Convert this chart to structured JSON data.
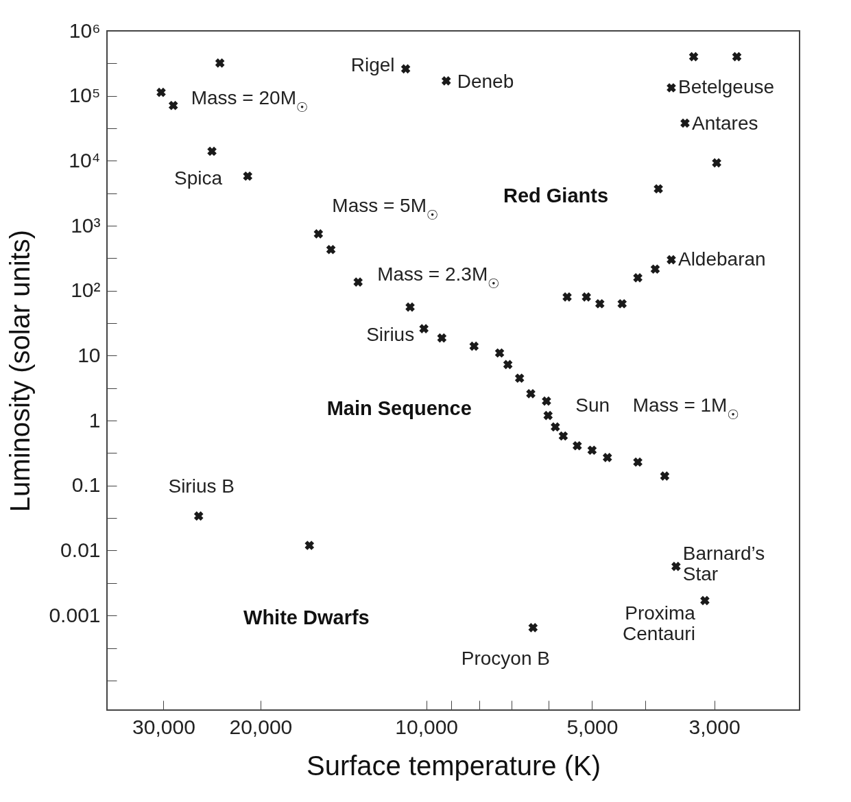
{
  "chart_data": {
    "type": "scatter",
    "xlabel": "Surface temperature (K)",
    "ylabel": "Luminosity (solar units)",
    "log": "xy",
    "grid": false,
    "marker": "cross",
    "xlim": [
      38000,
      2100
    ],
    "ylim": [
      3.5e-05,
      1000000
    ],
    "xticks": [
      {
        "value": 30000,
        "label": "30,000"
      },
      {
        "value": 20000,
        "label": "20,000"
      },
      {
        "value": 10000,
        "label": "10,000"
      },
      {
        "value": 9000,
        "label": null
      },
      {
        "value": 8000,
        "label": null
      },
      {
        "value": 7000,
        "label": null
      },
      {
        "value": 6000,
        "label": null
      },
      {
        "value": 5000,
        "label": "5,000"
      },
      {
        "value": 4000,
        "label": null
      },
      {
        "value": 3000,
        "label": "3,000"
      }
    ],
    "yticks": [
      {
        "value": 1000000,
        "label": "10⁶"
      },
      {
        "value": 316228,
        "label": null
      },
      {
        "value": 100000,
        "label": "10⁵"
      },
      {
        "value": 31623,
        "label": null
      },
      {
        "value": 10000,
        "label": "10⁴"
      },
      {
        "value": 3162,
        "label": null
      },
      {
        "value": 1000,
        "label": "10³"
      },
      {
        "value": 316,
        "label": null
      },
      {
        "value": 100,
        "label": "10²"
      },
      {
        "value": 31.6,
        "label": null
      },
      10,
      {
        "value": 3.16,
        "label": null
      },
      1,
      {
        "value": 0.316,
        "label": null
      },
      0.1,
      {
        "value": 0.0316,
        "label": null
      },
      0.01,
      {
        "value": 0.00316,
        "label": null
      },
      0.001,
      {
        "value": 0.000316,
        "label": null
      },
      {
        "value": 0.0001,
        "label": null
      }
    ],
    "series": [
      {
        "color": "#1a1a1a",
        "x": [
          23700,
          30300,
          28800,
          24500,
          21100,
          10900,
          9200,
          15700,
          14900,
          13300,
          10700,
          10100,
          9370,
          8190,
          7360,
          7110,
          6770,
          6460,
          6050,
          6010,
          5830,
          5640,
          5320,
          5000,
          4690,
          4130,
          3690,
          3520,
          3120,
          6400,
          25900,
          16300,
          3270,
          2730,
          3590,
          3390,
          2970,
          3790,
          3590,
          3840,
          4130,
          5550,
          5120,
          4840,
          4410
        ],
        "values": [
          320000,
          113000,
          71000,
          14000,
          5800,
          260000,
          170000,
          750,
          430,
          136,
          56,
          26,
          18.7,
          14,
          11,
          7.3,
          4.5,
          2.6,
          2.0,
          1.2,
          0.8,
          0.58,
          0.41,
          0.35,
          0.27,
          0.23,
          0.14,
          0.0057,
          0.0017,
          0.00065,
          0.034,
          0.012,
          400000,
          400000,
          133000,
          38000,
          9300,
          3700,
          300,
          215,
          158,
          80,
          80,
          63,
          63
        ]
      }
    ],
    "annotations": [
      {
        "text": "Rigel",
        "x": 10900,
        "y": 260000
      },
      {
        "text": "Deneb",
        "x": 9200,
        "y": 170000
      },
      {
        "text": "Betelgeuse",
        "x": 3590,
        "y": 133000
      },
      {
        "text": "Antares",
        "x": 3390,
        "y": 38000
      },
      {
        "text": "Aldebaran",
        "x": 3590,
        "y": 300
      },
      {
        "text": "Spica",
        "x": 24500,
        "y": 14000
      },
      {
        "text": "Sirius",
        "x": 10100,
        "y": 26
      },
      {
        "text": "Sirius B",
        "x": 25900,
        "y": 0.034
      },
      {
        "text": "Procyon B",
        "x": 6400,
        "y": 0.00065
      },
      {
        "text": "Barnard’s\nStar",
        "x": 3520,
        "y": 0.0057
      },
      {
        "text": "Proxima\nCentauri",
        "x": 3120,
        "y": 0.0017
      },
      {
        "text": "Mass = 20M$_{☉}$",
        "x": 28800,
        "y": 71000
      },
      {
        "text": "Mass = 5M$_{☉}$",
        "x": 15700,
        "y": 750
      },
      {
        "text": "Mass = 2.3M$_{☉}$",
        "x": 13300,
        "y": 136
      },
      {
        "text": "Sun",
        "x": 6010,
        "y": 1.2
      },
      "Mass = 1M$_{☉}$",
      "Red Giants",
      "Main Sequence",
      "White Dwarfs"
    ]
  }
}
